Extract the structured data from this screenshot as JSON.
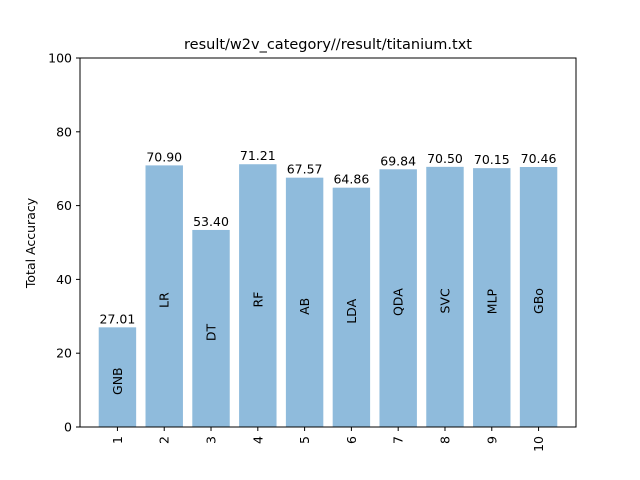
{
  "chart_data": {
    "type": "bar",
    "title": "result/w2v_category//result/titanium.txt",
    "xlabel": "",
    "ylabel": "Total Accuracy",
    "ylim": [
      0,
      100
    ],
    "yticks": [
      0,
      20,
      40,
      60,
      80,
      100
    ],
    "categories": [
      "1",
      "2",
      "3",
      "4",
      "5",
      "6",
      "7",
      "8",
      "9",
      "10"
    ],
    "values": [
      27.01,
      70.9,
      53.4,
      71.21,
      67.57,
      64.86,
      69.84,
      70.5,
      70.15,
      70.46
    ],
    "value_labels": [
      "27.01",
      "70.90",
      "53.40",
      "71.21",
      "67.57",
      "64.86",
      "69.84",
      "70.50",
      "70.15",
      "70.46"
    ],
    "bar_labels": [
      "GNB",
      "LR",
      "DT",
      "RF",
      "AB",
      "LDA",
      "QDA",
      "SVC",
      "MLP",
      "GBo"
    ],
    "bar_color": "#8fbbdc",
    "grid": false,
    "legend": "none"
  }
}
